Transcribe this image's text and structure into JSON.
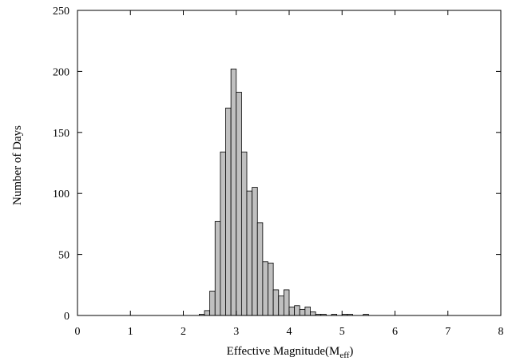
{
  "chart_data": {
    "type": "bar",
    "subtype": "histogram",
    "title": "",
    "xlabel": "Effective Magnitude(M",
    "xlabel_subscript": "eff",
    "xlabel_suffix": ")",
    "ylabel": "Number of Days",
    "xlim": [
      0,
      8
    ],
    "ylim": [
      0,
      250
    ],
    "xticks": [
      0,
      1,
      2,
      3,
      4,
      5,
      6,
      7,
      8
    ],
    "yticks": [
      0,
      50,
      100,
      150,
      200,
      250
    ],
    "grid": false,
    "legend": "none",
    "bar_color": "#c0c0c0",
    "bin_width": 0.1,
    "bins": [
      {
        "x0": 2.3,
        "value": 1
      },
      {
        "x0": 2.4,
        "value": 4
      },
      {
        "x0": 2.5,
        "value": 20
      },
      {
        "x0": 2.6,
        "value": 77
      },
      {
        "x0": 2.7,
        "value": 134
      },
      {
        "x0": 2.8,
        "value": 170
      },
      {
        "x0": 2.9,
        "value": 202
      },
      {
        "x0": 3.0,
        "value": 183
      },
      {
        "x0": 3.1,
        "value": 134
      },
      {
        "x0": 3.2,
        "value": 102
      },
      {
        "x0": 3.3,
        "value": 105
      },
      {
        "x0": 3.4,
        "value": 76
      },
      {
        "x0": 3.5,
        "value": 44
      },
      {
        "x0": 3.6,
        "value": 43
      },
      {
        "x0": 3.7,
        "value": 21
      },
      {
        "x0": 3.8,
        "value": 16
      },
      {
        "x0": 3.9,
        "value": 21
      },
      {
        "x0": 4.0,
        "value": 7
      },
      {
        "x0": 4.1,
        "value": 8
      },
      {
        "x0": 4.2,
        "value": 5
      },
      {
        "x0": 4.3,
        "value": 7
      },
      {
        "x0": 4.4,
        "value": 3
      },
      {
        "x0": 4.5,
        "value": 1
      },
      {
        "x0": 4.6,
        "value": 1
      },
      {
        "x0": 4.8,
        "value": 1
      },
      {
        "x0": 5.0,
        "value": 1
      },
      {
        "x0": 5.1,
        "value": 1
      },
      {
        "x0": 5.4,
        "value": 1
      }
    ]
  }
}
